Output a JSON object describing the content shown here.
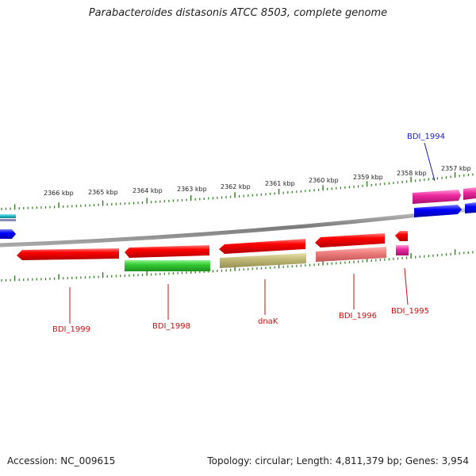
{
  "title": "Parabacteroides distasonis ATCC 8503, complete genome",
  "footer": {
    "accession": "Accession: NC_009615",
    "summary": "Topology: circular; Length: 4,811,379 bp; Genes: 3,954"
  },
  "colors": {
    "backbone": "#8a8a8a",
    "tick": "#2f7d1d",
    "label_forward": "#1a1acc",
    "label_reverse": "#cc1111",
    "red": "#ff0000",
    "green": "#33cc33",
    "olive": "#c2bb78",
    "salmon": "#ef7f7f",
    "magenta": "#ee2aa0",
    "blue": "#0000ff",
    "cyan": "#20b6c8"
  },
  "scale": {
    "ticks": [
      "2366 kbp",
      "2365 kbp",
      "2364 kbp",
      "2363 kbp",
      "2362 kbp",
      "2361 kbp",
      "2360 kbp",
      "2359 kbp",
      "2358 kbp",
      "2357 kbp"
    ]
  },
  "genes": [
    {
      "name": "BDI_1994",
      "strand": "forward"
    },
    {
      "name": "BDI_1999",
      "strand": "reverse"
    },
    {
      "name": "BDI_1998",
      "strand": "reverse"
    },
    {
      "name": "dnaK",
      "strand": "reverse"
    },
    {
      "name": "BDI_1996",
      "strand": "reverse"
    },
    {
      "name": "BDI_1995",
      "strand": "reverse"
    }
  ]
}
